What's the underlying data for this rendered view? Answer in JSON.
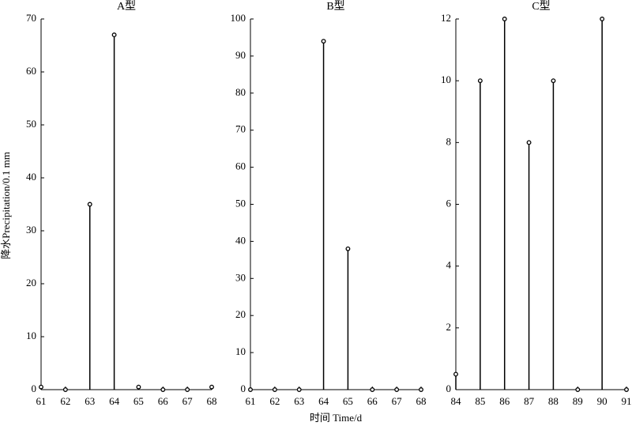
{
  "chart_data": [
    {
      "type": "stem",
      "title": "A型",
      "ylabel": "降水Precipitation/0.1 mm",
      "x": [
        61,
        62,
        63,
        64,
        65,
        66,
        67,
        68
      ],
      "values": [
        0.5,
        0,
        35,
        67,
        0.5,
        0,
        0,
        0.5
      ],
      "color": "#000000",
      "xlim": [
        61,
        68
      ],
      "xticks": [
        61,
        62,
        63,
        64,
        65,
        66,
        67,
        68
      ],
      "ylim": [
        0,
        70
      ],
      "yticks": [
        0,
        10,
        20,
        30,
        40,
        50,
        60,
        70
      ]
    },
    {
      "type": "stem",
      "title": "B型",
      "xlabel": "时间 Time/d",
      "x": [
        61,
        62,
        63,
        64,
        65,
        66,
        67,
        68
      ],
      "values": [
        0,
        0,
        0,
        94,
        38,
        0,
        0,
        0
      ],
      "color": "#000000",
      "xlim": [
        61,
        68
      ],
      "xticks": [
        61,
        62,
        63,
        64,
        65,
        66,
        67,
        68
      ],
      "ylim": [
        0,
        100
      ],
      "yticks": [
        0,
        10,
        20,
        30,
        40,
        50,
        60,
        70,
        80,
        90,
        100
      ]
    },
    {
      "type": "stem",
      "title": "C型",
      "x": [
        84,
        85,
        86,
        87,
        88,
        89,
        90,
        91
      ],
      "values": [
        0.5,
        10,
        12,
        8,
        10,
        0,
        12,
        0
      ],
      "color": "#000000",
      "xlim": [
        84,
        91
      ],
      "xticks": [
        84,
        85,
        86,
        87,
        88,
        89,
        90,
        91
      ],
      "ylim": [
        0,
        12
      ],
      "yticks": [
        0,
        2,
        4,
        6,
        8,
        10,
        12
      ]
    }
  ]
}
